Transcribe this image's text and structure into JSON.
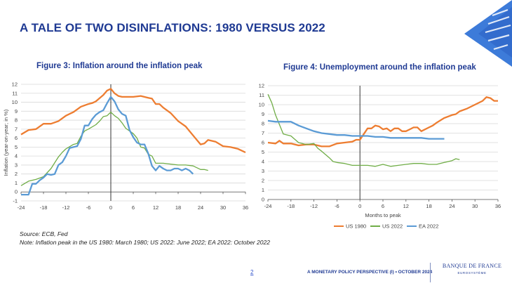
{
  "slide": {
    "title": "A TALE OF TWO DISINFLATIONS: 1980 VERSUS 2022",
    "source_line": "Source: ECB, Fed",
    "note_line": "Note: Inflation peak in the US 1980: March 1980; US 2022: June 2022; EA 2022: October 2022",
    "page_number": "2",
    "footer": "A MONETARY POLICY PERSPECTIVE (I) • OCTOBER 2024",
    "logo_name": "BANQUE DE FRANCE",
    "logo_sub": "EUROSYSTÈME"
  },
  "colors": {
    "us1980": "#ed7d31",
    "us2022": "#70ad47",
    "ea2022": "#5b9bd5",
    "title": "#1f3a93"
  },
  "chart_data": [
    {
      "type": "line",
      "title": "Figure 3: Inflation around the inflation peak",
      "xlabel": "",
      "ylabel": "Inflation (year-on-year; in %)",
      "xlim": [
        -24,
        36
      ],
      "ylim": [
        -1,
        12
      ],
      "xticks": [
        -24,
        -18,
        -12,
        -6,
        0,
        6,
        12,
        18,
        24,
        30,
        36
      ],
      "yticks": [
        -1,
        0,
        1,
        2,
        3,
        4,
        5,
        6,
        7,
        8,
        9,
        10,
        11,
        12
      ],
      "grid": true,
      "vline_x": 0,
      "series": [
        {
          "name": "US 1980",
          "color": "#ed7d31",
          "x": [
            -24,
            -22,
            -20,
            -18,
            -17,
            -16,
            -14,
            -12,
            -11,
            -10,
            -8,
            -6,
            -5,
            -4,
            -2,
            -1,
            0,
            1,
            2,
            3,
            4,
            6,
            8,
            10,
            11,
            12,
            13,
            14,
            16,
            18,
            20,
            22,
            24,
            25,
            26,
            28,
            30,
            32,
            34,
            36
          ],
          "y": [
            6.4,
            6.9,
            7.0,
            7.6,
            7.6,
            7.6,
            7.9,
            8.5,
            8.7,
            8.9,
            9.5,
            9.8,
            9.9,
            10.1,
            10.8,
            11.3,
            11.5,
            11.0,
            10.7,
            10.6,
            10.6,
            10.6,
            10.7,
            10.5,
            10.4,
            9.8,
            9.8,
            9.4,
            8.8,
            7.9,
            7.3,
            6.3,
            5.3,
            5.4,
            5.8,
            5.6,
            5.1,
            5.0,
            4.8,
            4.4
          ]
        },
        {
          "name": "US 2022",
          "color": "#70ad47",
          "x": [
            -24,
            -22,
            -20,
            -18,
            -16,
            -14,
            -13,
            -12,
            -10,
            -9,
            -8,
            -7,
            -6,
            -4,
            -3,
            -2,
            -1,
            0,
            1,
            2,
            3,
            4,
            6,
            7,
            8,
            9,
            10,
            11,
            12,
            14,
            16,
            18,
            20,
            22,
            24,
            25,
            26
          ],
          "y": [
            0.7,
            1.2,
            1.4,
            1.7,
            2.6,
            3.9,
            4.4,
            4.8,
            5.3,
            5.4,
            6.2,
            6.8,
            7.0,
            7.5,
            7.9,
            8.4,
            8.5,
            8.9,
            8.5,
            8.2,
            7.7,
            7.1,
            6.5,
            6.0,
            5.0,
            4.9,
            4.2,
            4.0,
            3.2,
            3.2,
            3.1,
            3.0,
            3.0,
            2.9,
            2.5,
            2.5,
            2.4
          ]
        },
        {
          "name": "EA 2022",
          "color": "#5b9bd5",
          "x": [
            -24,
            -23,
            -22,
            -21,
            -20,
            -19,
            -18,
            -17,
            -16,
            -15,
            -14,
            -13,
            -12,
            -11,
            -10,
            -9,
            -8,
            -7,
            -6,
            -5,
            -4,
            -3,
            -2,
            -1,
            0,
            1,
            2,
            3,
            4,
            5,
            6,
            7,
            8,
            9,
            10,
            11,
            12,
            13,
            14,
            15,
            16,
            17,
            18,
            19,
            20,
            21,
            22
          ],
          "y": [
            -0.3,
            -0.3,
            -0.3,
            0.9,
            0.9,
            1.3,
            1.6,
            2.0,
            1.9,
            2.0,
            3.0,
            3.3,
            4.0,
            4.9,
            5.0,
            5.1,
            5.9,
            7.4,
            7.4,
            8.1,
            8.6,
            8.9,
            9.1,
            9.9,
            10.6,
            10.1,
            9.2,
            8.7,
            8.5,
            6.9,
            6.1,
            5.5,
            5.3,
            5.3,
            4.3,
            2.9,
            2.4,
            2.9,
            2.6,
            2.4,
            2.4,
            2.6,
            2.6,
            2.4,
            2.6,
            2.4,
            2.0
          ]
        }
      ]
    },
    {
      "type": "line",
      "title": "Figure 4: Unemployment around the inflation peak",
      "xlabel": "Months to peak",
      "ylabel": "Unemployment (in %)",
      "xlim": [
        -24,
        36
      ],
      "ylim": [
        0,
        12
      ],
      "xticks": [
        -24,
        -18,
        -12,
        -6,
        0,
        6,
        12,
        18,
        24,
        30,
        36
      ],
      "yticks": [
        0,
        1,
        2,
        3,
        4,
        5,
        6,
        7,
        8,
        9,
        10,
        11,
        12
      ],
      "grid": true,
      "vline_x": 0,
      "legend": [
        "US 1980",
        "US 2022",
        "EA 2022"
      ],
      "series": [
        {
          "name": "US 1980",
          "color": "#ed7d31",
          "x": [
            -24,
            -22,
            -21,
            -20,
            -18,
            -16,
            -14,
            -12,
            -10,
            -8,
            -6,
            -4,
            -2,
            -1,
            0,
            1,
            2,
            3,
            4,
            5,
            6,
            7,
            8,
            9,
            10,
            11,
            12,
            13,
            14,
            15,
            16,
            18,
            19,
            20,
            22,
            24,
            25,
            26,
            28,
            30,
            32,
            33,
            34,
            35,
            36
          ],
          "y": [
            6.0,
            5.9,
            6.2,
            5.9,
            5.9,
            5.7,
            5.8,
            5.8,
            5.6,
            5.6,
            5.9,
            6.0,
            6.1,
            6.3,
            6.3,
            6.9,
            7.5,
            7.5,
            7.8,
            7.7,
            7.4,
            7.5,
            7.2,
            7.5,
            7.5,
            7.2,
            7.2,
            7.4,
            7.6,
            7.6,
            7.2,
            7.6,
            7.8,
            8.1,
            8.6,
            8.9,
            9.0,
            9.3,
            9.6,
            10.0,
            10.4,
            10.8,
            10.7,
            10.4,
            10.4
          ]
        },
        {
          "name": "US 2022",
          "color": "#70ad47",
          "x": [
            -24,
            -23,
            -22,
            -21,
            -20,
            -18,
            -16,
            -14,
            -12,
            -11,
            -10,
            -8,
            -7,
            -6,
            -4,
            -2,
            0,
            2,
            4,
            6,
            8,
            10,
            12,
            14,
            16,
            18,
            20,
            22,
            24,
            25,
            26
          ],
          "y": [
            11.1,
            10.2,
            8.9,
            7.9,
            6.9,
            6.7,
            6.0,
            5.8,
            5.9,
            5.4,
            5.1,
            4.4,
            4.0,
            3.9,
            3.8,
            3.6,
            3.6,
            3.6,
            3.5,
            3.7,
            3.5,
            3.6,
            3.7,
            3.8,
            3.8,
            3.7,
            3.7,
            3.9,
            4.1,
            4.3,
            4.2
          ]
        },
        {
          "name": "EA 2022",
          "color": "#5b9bd5",
          "x": [
            -24,
            -22,
            -20,
            -18,
            -16,
            -14,
            -12,
            -10,
            -8,
            -6,
            -4,
            -2,
            0,
            2,
            4,
            6,
            8,
            10,
            12,
            14,
            16,
            18,
            20,
            22
          ],
          "y": [
            8.3,
            8.2,
            8.2,
            8.2,
            7.8,
            7.5,
            7.2,
            7.0,
            6.9,
            6.8,
            6.8,
            6.7,
            6.7,
            6.7,
            6.6,
            6.6,
            6.5,
            6.5,
            6.5,
            6.5,
            6.5,
            6.4,
            6.4,
            6.4
          ]
        }
      ]
    }
  ]
}
